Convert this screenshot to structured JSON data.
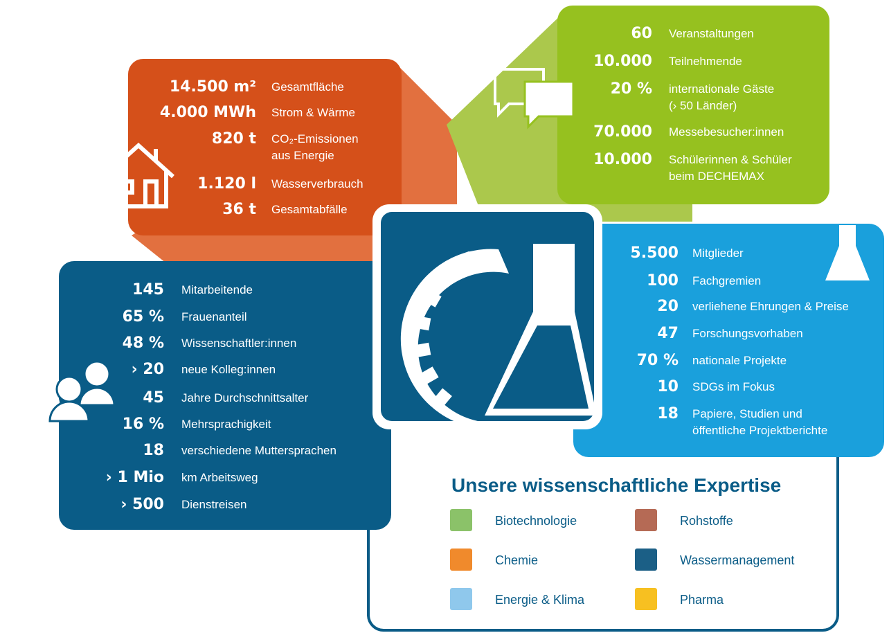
{
  "operations": {
    "stats": [
      {
        "value": "14.500 m²",
        "label": [
          "Gesamtfläche"
        ]
      },
      {
        "value": "4.000 MWh",
        "label": [
          "Strom & Wärme"
        ]
      },
      {
        "value": "820 t",
        "label": [
          "CO₂-Emissionen",
          "aus Energie"
        ]
      },
      {
        "value": "1.120 l",
        "label": [
          "Wasserverbrauch"
        ]
      },
      {
        "value": "36 t",
        "label": [
          "Gesamtabfälle"
        ]
      }
    ]
  },
  "events": {
    "stats": [
      {
        "value": "60",
        "label": [
          "Veranstaltungen"
        ]
      },
      {
        "value": "10.000",
        "label": [
          "Teilnehmende"
        ]
      },
      {
        "value": "20 %",
        "label": [
          "internationale Gäste",
          "(› 50 Länder)"
        ]
      },
      {
        "value": "70.000",
        "label": [
          "Messebesucher:innen"
        ]
      },
      {
        "value": "10.000",
        "label": [
          "Schülerinnen & Schüler",
          "beim DECHEMAX"
        ]
      }
    ]
  },
  "staff": {
    "stats": [
      {
        "value": "145",
        "label": [
          "Mitarbeitende"
        ]
      },
      {
        "value": "65 %",
        "label": [
          "Frauenanteil"
        ]
      },
      {
        "value": "48 %",
        "label": [
          "Wissenschaftler:innen"
        ]
      },
      {
        "value": "› 20",
        "label": [
          "neue Kolleg:innen"
        ]
      },
      {
        "value": "45",
        "label": [
          "Jahre Durchschnittsalter"
        ]
      },
      {
        "value": "16 %",
        "label": [
          "Mehrsprachigkeit"
        ]
      },
      {
        "value": "18",
        "label": [
          "verschiedene Muttersprachen"
        ]
      },
      {
        "value": "› 1 Mio",
        "label": [
          "km Arbeitsweg"
        ]
      },
      {
        "value": "› 500",
        "label": [
          "Dienstreisen"
        ]
      }
    ]
  },
  "network": {
    "stats": [
      {
        "value": "5.500",
        "label": [
          "Mitglieder"
        ]
      },
      {
        "value": "100",
        "label": [
          "Fachgremien"
        ]
      },
      {
        "value": "20",
        "label": [
          "verliehene Ehrungen & Preise"
        ]
      },
      {
        "value": "47",
        "label": [
          "Forschungsvorhaben"
        ]
      },
      {
        "value": "70 %",
        "label": [
          "nationale Projekte"
        ]
      },
      {
        "value": "10",
        "label": [
          "SDGs im Fokus"
        ]
      },
      {
        "value": "18",
        "label": [
          "Papiere, Studien und",
          "öffentliche Projektberichte"
        ]
      }
    ]
  },
  "expertise": {
    "title": "Unsere wissenschaftliche Expertise",
    "items": [
      {
        "label": "Biotechnologie"
      },
      {
        "label": "Rohstoffe"
      },
      {
        "label": "Chemie"
      },
      {
        "label": "Wassermanagement"
      },
      {
        "label": "Energie & Klima"
      },
      {
        "label": "Pharma"
      }
    ]
  }
}
